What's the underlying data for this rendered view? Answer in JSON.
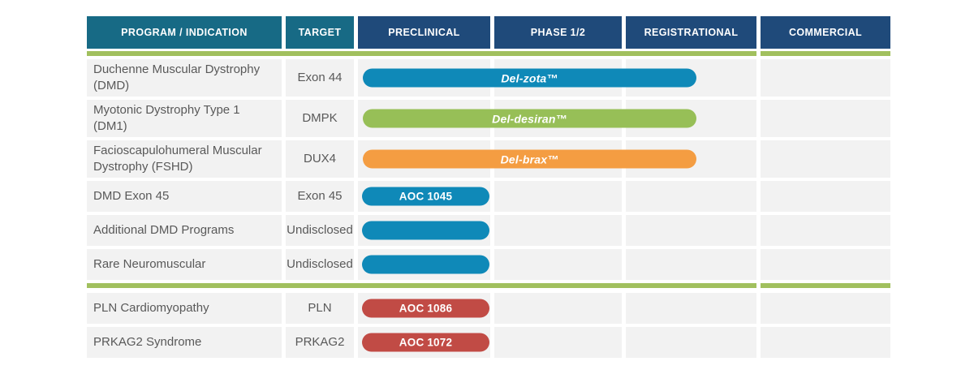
{
  "colors": {
    "header_teal": "#176a85",
    "header_navy": "#1f4a7a",
    "stage_line_green": "#a1c05e",
    "row_background": "#f2f2f2",
    "row_text_gray": "#595959",
    "bar_blue": "#0f89b8",
    "bar_green": "#97bf57",
    "bar_orange": "#f49d42",
    "bar_red": "#c14b45",
    "bar_text": "#ffffff"
  },
  "table": {
    "columns": [
      {
        "label": "PROGRAM / INDICATION",
        "style": "teal"
      },
      {
        "label": "TARGET",
        "style": "teal"
      },
      {
        "label": "PRECLINICAL",
        "style": "navy"
      },
      {
        "label": "PHASE 1/2",
        "style": "navy"
      },
      {
        "label": "REGISTRATIONAL",
        "style": "navy"
      },
      {
        "label": "COMMERCIAL",
        "style": "navy"
      }
    ],
    "groups": [
      {
        "rows": [
          {
            "program": "Duchenne Muscular Dystrophy (DMD)",
            "target": "Exon 44",
            "bar": {
              "label": "Del-zota™",
              "color_key": "bar_blue",
              "span": "long",
              "italic": true
            }
          },
          {
            "program": "Myotonic Dystrophy Type 1 (DM1)",
            "target": "DMPK",
            "bar": {
              "label": "Del-desiran™",
              "color_key": "bar_green",
              "span": "long",
              "italic": true
            }
          },
          {
            "program": "Facioscapulohumeral Muscular Dystrophy (FSHD)",
            "target": "DUX4",
            "bar": {
              "label": "Del-brax™",
              "color_key": "bar_orange",
              "span": "long",
              "italic": true
            }
          },
          {
            "program": "DMD Exon 45",
            "target": "Exon 45",
            "bar": {
              "label": "AOC 1045",
              "color_key": "bar_blue",
              "span": "short",
              "italic": false
            }
          },
          {
            "program": "Additional DMD Programs",
            "target": "Undisclosed",
            "bar": {
              "label": "",
              "color_key": "bar_blue",
              "span": "short",
              "italic": false
            }
          },
          {
            "program": "Rare Neuromuscular",
            "target": "Undisclosed",
            "bar": {
              "label": "",
              "color_key": "bar_blue",
              "span": "short",
              "italic": false
            }
          }
        ]
      },
      {
        "rows": [
          {
            "program": "PLN Cardiomyopathy",
            "target": "PLN",
            "bar": {
              "label": "AOC 1086",
              "color_key": "bar_red",
              "span": "short",
              "italic": false
            }
          },
          {
            "program": "PRKAG2 Syndrome",
            "target": "PRKAG2",
            "bar": {
              "label": "AOC 1072",
              "color_key": "bar_red",
              "span": "short",
              "italic": false
            }
          }
        ]
      }
    ]
  },
  "chart_data": {
    "type": "table",
    "title": "Clinical pipeline chart",
    "columns": [
      "PROGRAM / INDICATION",
      "TARGET",
      "PRECLINICAL",
      "PHASE 1/2",
      "REGISTRATIONAL",
      "COMMERCIAL"
    ],
    "rows": [
      {
        "program": "Duchenne Muscular Dystrophy (DMD)",
        "target": "Exon 44",
        "candidate": "Del-zota™",
        "bar_color": "#0f89b8",
        "bar_extent": "through Phase 1/2 into mid-Registrational"
      },
      {
        "program": "Myotonic Dystrophy Type 1 (DM1)",
        "target": "DMPK",
        "candidate": "Del-desiran™",
        "bar_color": "#97bf57",
        "bar_extent": "through Phase 1/2 into mid-Registrational"
      },
      {
        "program": "Facioscapulohumeral Muscular Dystrophy (FSHD)",
        "target": "DUX4",
        "candidate": "Del-brax™",
        "bar_color": "#f49d42",
        "bar_extent": "through Phase 1/2 into mid-Registrational"
      },
      {
        "program": "DMD Exon 45",
        "target": "Exon 45",
        "candidate": "AOC 1045",
        "bar_color": "#0f89b8",
        "bar_extent": "Preclinical"
      },
      {
        "program": "Additional DMD Programs",
        "target": "Undisclosed",
        "candidate": "",
        "bar_color": "#0f89b8",
        "bar_extent": "Preclinical"
      },
      {
        "program": "Rare Neuromuscular",
        "target": "Undisclosed",
        "candidate": "",
        "bar_color": "#0f89b8",
        "bar_extent": "Preclinical"
      },
      {
        "program": "PLN Cardiomyopathy",
        "target": "PLN",
        "candidate": "AOC 1086",
        "bar_color": "#c14b45",
        "bar_extent": "Preclinical"
      },
      {
        "program": "PRKAG2 Syndrome",
        "target": "PRKAG2",
        "candidate": "AOC 1072",
        "bar_color": "#c14b45",
        "bar_extent": "Preclinical"
      }
    ],
    "layout": {
      "grid": "off",
      "group_separator": "green horizontal line after row 6 and below header, with a white gap before the COMMERCIAL column"
    }
  }
}
